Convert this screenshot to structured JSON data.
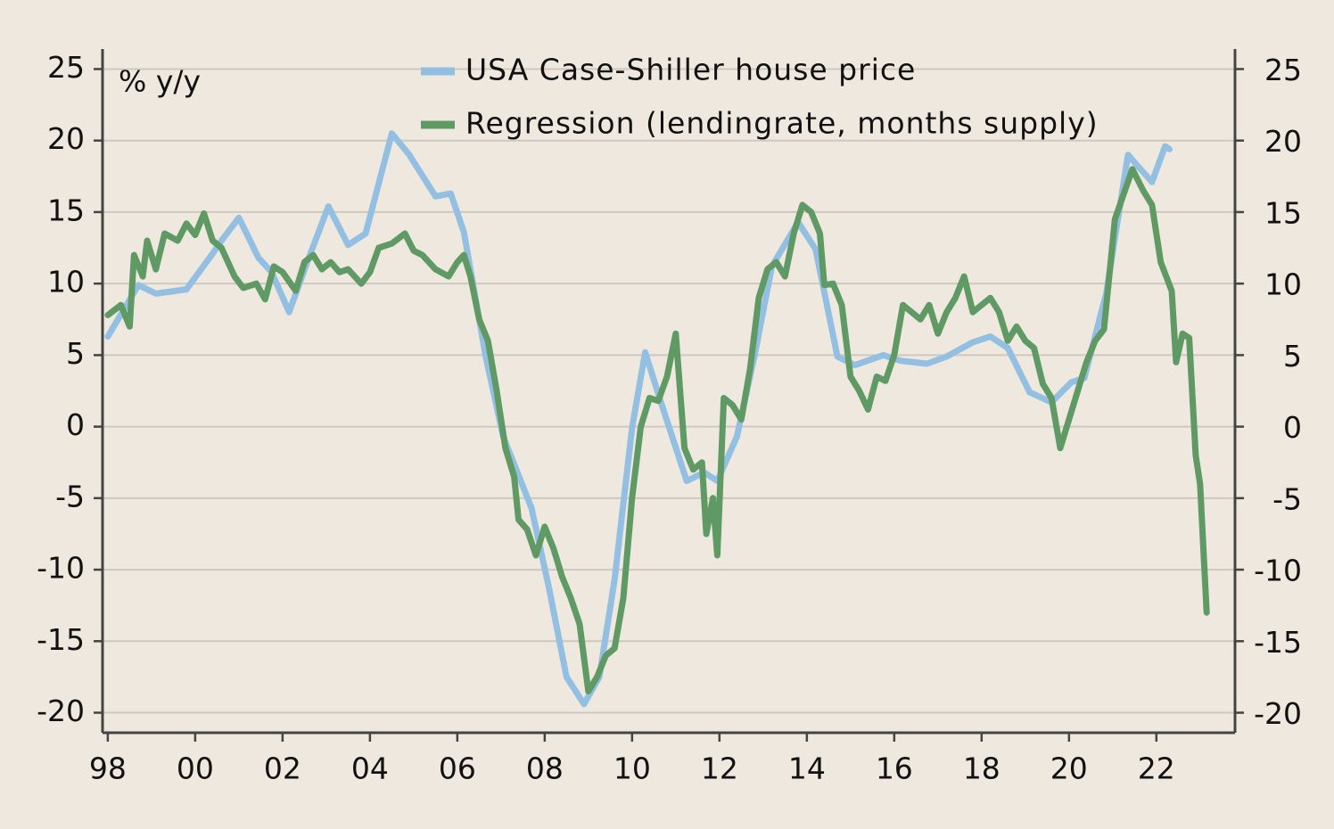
{
  "chart_data": {
    "type": "line",
    "ylabel": "% y/y",
    "xlim": [
      1997.88,
      2023.8
    ],
    "xticks": [
      {
        "value": 1998,
        "label": "98"
      },
      {
        "value": 2000,
        "label": "00"
      },
      {
        "value": 2002,
        "label": "02"
      },
      {
        "value": 2004,
        "label": "04"
      },
      {
        "value": 2006,
        "label": "06"
      },
      {
        "value": 2008,
        "label": "08"
      },
      {
        "value": 2010,
        "label": "10"
      },
      {
        "value": 2012,
        "label": "12"
      },
      {
        "value": 2014,
        "label": "14"
      },
      {
        "value": 2016,
        "label": "16"
      },
      {
        "value": 2018,
        "label": "18"
      },
      {
        "value": 2020,
        "label": "20"
      },
      {
        "value": 2022,
        "label": "22"
      }
    ],
    "ylim": [
      -21.4,
      26.4
    ],
    "yticks": [
      -20,
      -15,
      -10,
      -5,
      0,
      5,
      10,
      15,
      20,
      25
    ],
    "y2lim": [
      -21.4,
      26.4
    ],
    "y2ticks": [
      -20,
      -15,
      -10,
      -5,
      0,
      5,
      10,
      15,
      20,
      25
    ],
    "grid": true,
    "legend": "top",
    "series": [
      {
        "name": "USA Case-Shiller house price",
        "color": "#93c0e2",
        "x": [
          1998.0,
          1998.7,
          1999.1,
          1999.8,
          2000.4,
          2000.6,
          2001.0,
          2001.45,
          2001.75,
          2002.15,
          2002.6,
          2003.05,
          2003.5,
          2003.9,
          2004.5,
          2004.9,
          2005.5,
          2005.85,
          2006.15,
          2006.65,
          2007.05,
          2007.7,
          2008.1,
          2008.5,
          2008.9,
          2009.25,
          2009.6,
          2010.0,
          2010.3,
          2010.65,
          2011.25,
          2011.65,
          2011.95,
          2012.4,
          2012.8,
          2013.2,
          2013.8,
          2014.2,
          2014.7,
          2015.1,
          2015.75,
          2016.15,
          2016.75,
          2017.2,
          2017.8,
          2018.2,
          2018.6,
          2019.1,
          2019.6,
          2020.05,
          2020.35,
          2020.85,
          2021.35,
          2021.55,
          2021.9,
          2022.2,
          2022.3
        ],
        "values": [
          6.3,
          9.9,
          9.3,
          9.6,
          12.1,
          13,
          14.6,
          11.8,
          10.8,
          8.0,
          11.8,
          15.4,
          12.7,
          13.5,
          20.5,
          19.0,
          16.1,
          16.3,
          13.6,
          4.9,
          -0.7,
          -5.7,
          -11.3,
          -17.5,
          -19.4,
          -17.5,
          -10.7,
          -0.1,
          5.2,
          1.8,
          -3.8,
          -3.2,
          -3.8,
          -0.7,
          4.9,
          11.2,
          14.3,
          12.4,
          4.9,
          4.3,
          5.0,
          4.6,
          4.4,
          4.9,
          5.9,
          6.3,
          5.5,
          2.4,
          1.7,
          3.1,
          3.4,
          9.3,
          19.0,
          18.3,
          17.1,
          19.6,
          19.4
        ]
      },
      {
        "name": "Regression (lendingrate, months supply)",
        "color": "#5f9a64",
        "x": [
          1998.0,
          1998.3,
          1998.5,
          1998.6,
          1998.8,
          1998.9,
          1999.1,
          1999.3,
          1999.6,
          1999.8,
          2000.0,
          2000.2,
          2000.4,
          2000.6,
          2000.9,
          2001.1,
          2001.4,
          2001.6,
          2001.8,
          2002.0,
          2002.3,
          2002.5,
          2002.7,
          2002.9,
          2003.1,
          2003.3,
          2003.5,
          2003.8,
          2004.0,
          2004.2,
          2004.5,
          2004.8,
          2005.0,
          2005.2,
          2005.5,
          2005.8,
          2006.0,
          2006.15,
          2006.3,
          2006.5,
          2006.7,
          2006.9,
          2007.1,
          2007.3,
          2007.4,
          2007.6,
          2007.8,
          2008.0,
          2008.2,
          2008.4,
          2008.6,
          2008.8,
          2009.0,
          2009.2,
          2009.4,
          2009.6,
          2009.8,
          2010.0,
          2010.2,
          2010.4,
          2010.6,
          2010.8,
          2011.0,
          2011.2,
          2011.4,
          2011.6,
          2011.7,
          2011.85,
          2011.95,
          2012.1,
          2012.3,
          2012.5,
          2012.7,
          2012.9,
          2013.1,
          2013.3,
          2013.5,
          2013.7,
          2013.9,
          2014.1,
          2014.3,
          2014.4,
          2014.6,
          2014.8,
          2015.0,
          2015.2,
          2015.4,
          2015.6,
          2015.8,
          2016.0,
          2016.2,
          2016.4,
          2016.6,
          2016.8,
          2017.0,
          2017.2,
          2017.4,
          2017.6,
          2017.8,
          2018.0,
          2018.2,
          2018.4,
          2018.6,
          2018.8,
          2019.0,
          2019.2,
          2019.4,
          2019.6,
          2019.8,
          2020.0,
          2020.2,
          2020.4,
          2020.6,
          2020.8,
          2021.05,
          2021.45,
          2021.7,
          2021.9,
          2022.1,
          2022.35,
          2022.45,
          2022.6,
          2022.75,
          2022.9,
          2023.0,
          2023.15
        ],
        "values": [
          7.8,
          8.5,
          7.0,
          12,
          10.5,
          13,
          11,
          13.5,
          13,
          14.2,
          13.4,
          14.9,
          13.0,
          12.5,
          10.5,
          9.7,
          10.0,
          8.9,
          11.2,
          10.8,
          9.5,
          11.5,
          12.0,
          11.0,
          11.5,
          10.8,
          11.0,
          10.0,
          10.8,
          12.5,
          12.8,
          13.5,
          12.3,
          12.0,
          11.0,
          10.5,
          11.5,
          12.0,
          10.5,
          7.5,
          6.0,
          2.5,
          -1.5,
          -3.5,
          -6.5,
          -7.2,
          -9.0,
          -7.0,
          -8.5,
          -10.5,
          -12.0,
          -13.8,
          -18.5,
          -17.5,
          -16.0,
          -15.5,
          -12.0,
          -5.0,
          0.0,
          2.0,
          1.8,
          3.5,
          6.5,
          -1.5,
          -3.0,
          -2.5,
          -7.5,
          -5.0,
          -9.0,
          2.0,
          1.5,
          0.5,
          4.0,
          9.0,
          11.0,
          11.5,
          10.5,
          13.5,
          15.5,
          15.0,
          13.5,
          9.9,
          10.0,
          8.5,
          3.5,
          2.5,
          1.2,
          3.5,
          3.2,
          5.0,
          8.5,
          8.0,
          7.5,
          8.5,
          6.5,
          8.0,
          9.0,
          10.5,
          8.0,
          8.5,
          9.0,
          8.0,
          6.0,
          7.0,
          6.0,
          5.5,
          3.0,
          2.0,
          -1.5,
          0.5,
          2.5,
          4.5,
          6.0,
          6.8,
          14.5,
          18.0,
          16.5,
          15.5,
          11.5,
          9.5,
          4.5,
          6.5,
          6.2,
          -2.0,
          -4.0,
          -13.0
        ]
      }
    ]
  }
}
